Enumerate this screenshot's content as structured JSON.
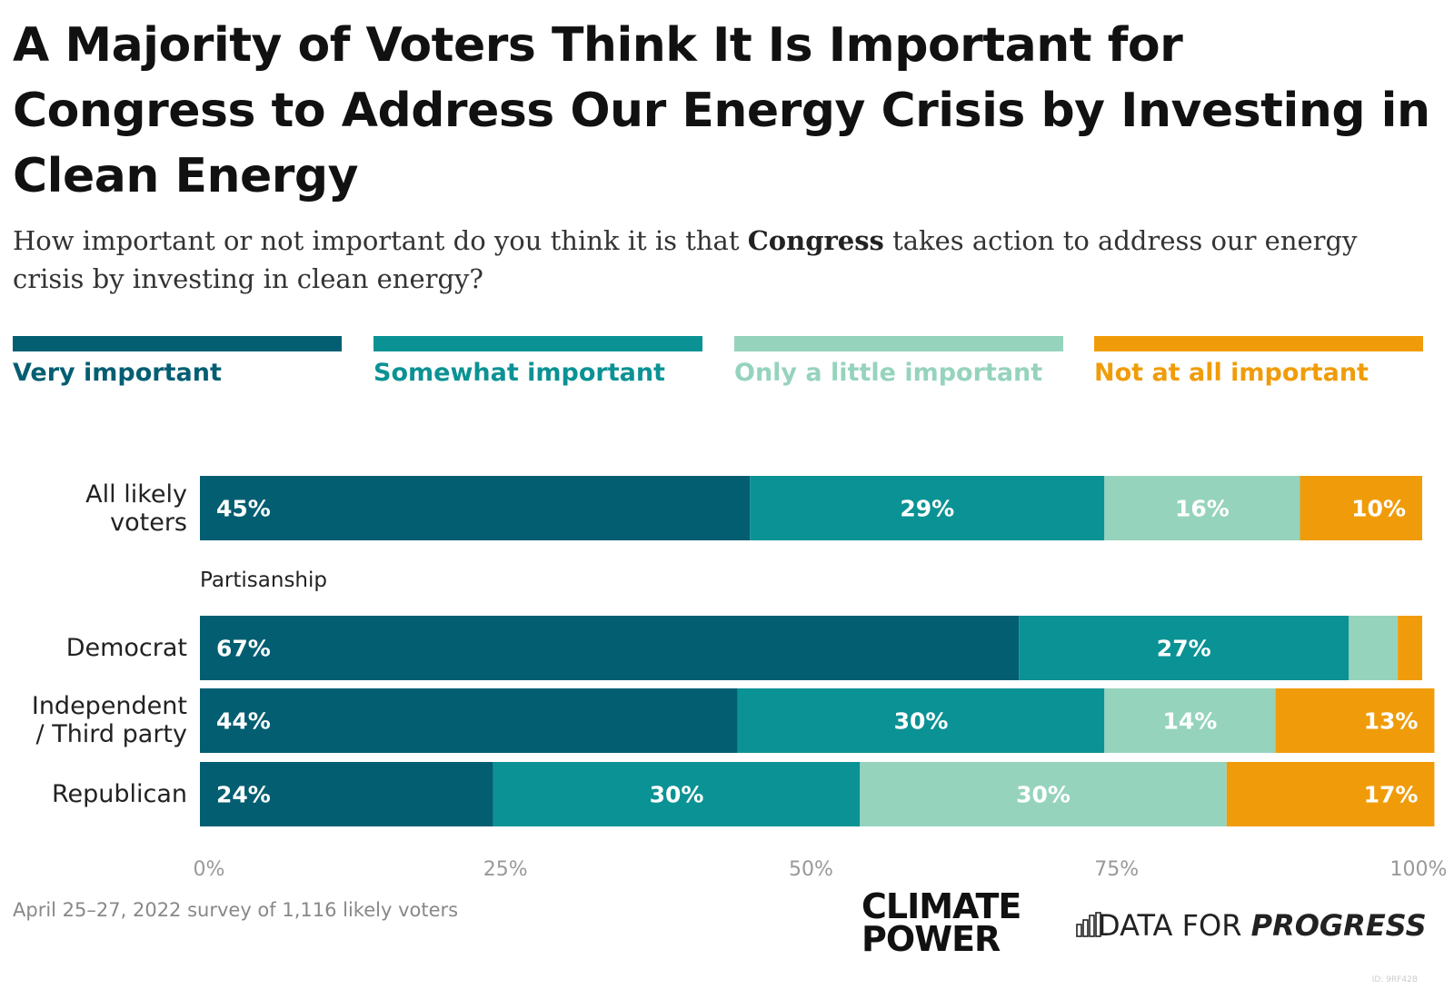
{
  "title": "A Majority of Voters Think It Is Important for Congress to Address Our Energy Crisis by Investing in Clean Energy",
  "subtitle": {
    "before": "How important or not important do you think it is that ",
    "bold": "Congress",
    "after": " takes action to address our energy crisis by investing in clean energy?"
  },
  "legend": [
    {
      "label": "Very important",
      "color": "#035e72"
    },
    {
      "label": "Somewhat important",
      "color": "#0b9294"
    },
    {
      "label": "Only a little important",
      "color": "#96d3bd"
    },
    {
      "label": "Not at all important",
      "color": "#f09c0a"
    }
  ],
  "group_label": "Partisanship",
  "source": "April 25–27, 2022 survey of 1,116 likely voters",
  "logos": {
    "climate_power": [
      "CLIMATE",
      "POWER"
    ],
    "dfp_plain": "DATA FOR ",
    "dfp_italic": "PROGRESS"
  },
  "small_id": "ID: 9RF42B",
  "chart_data": {
    "type": "bar",
    "orientation": "horizontal",
    "stacked": true,
    "xlim": [
      0,
      100
    ],
    "x_ticks": [
      "0%",
      "25%",
      "50%",
      "75%",
      "100%"
    ],
    "categories": [
      [
        "All likely",
        "voters"
      ],
      [
        "Democrat"
      ],
      [
        "Independent",
        "/ Third party"
      ],
      [
        "Republican"
      ]
    ],
    "series": [
      {
        "name": "Very important",
        "color": "#035e72",
        "values": [
          45,
          67,
          44,
          24
        ],
        "labels": [
          "45%",
          "67%",
          "44%",
          "24%"
        ]
      },
      {
        "name": "Somewhat important",
        "color": "#0b9294",
        "values": [
          29,
          27,
          30,
          30
        ],
        "labels": [
          "29%",
          "27%",
          "30%",
          "30%"
        ]
      },
      {
        "name": "Only a little important",
        "color": "#96d3bd",
        "values": [
          16,
          4,
          14,
          30
        ],
        "labels": [
          "16%",
          "",
          "14%",
          "30%"
        ]
      },
      {
        "name": "Not at all important",
        "color": "#f09c0a",
        "values": [
          10,
          2,
          13,
          17
        ],
        "labels": [
          "10%",
          "",
          "13%",
          "17%"
        ]
      }
    ],
    "legend_position": "top",
    "grid": false
  }
}
